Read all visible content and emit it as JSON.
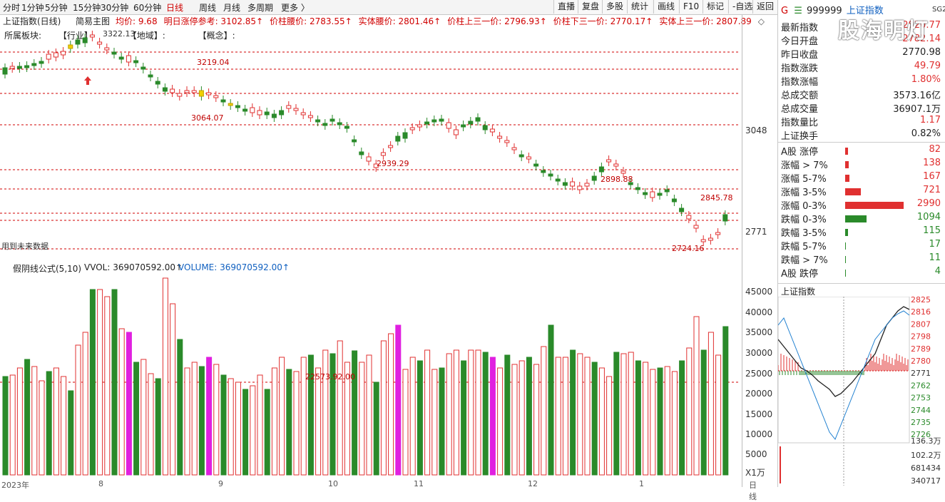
{
  "toolbar": {
    "periods": [
      "分时",
      "1分钟",
      "5分钟",
      "15分钟",
      "30分钟",
      "60分钟",
      "日线",
      "周线",
      "月线",
      "多周期",
      "更多"
    ],
    "active": "日线",
    "right_buttons": [
      "直播",
      "复盘",
      "多股",
      "统计",
      "画线",
      "F10",
      "标记",
      "-自选",
      "返回"
    ]
  },
  "header": {
    "index_name": "上证指数(日线)",
    "mode": "简易主图",
    "items": [
      {
        "label": "均价: 9.68"
      },
      {
        "label": "明日涨停参考: 3102.85↑"
      },
      {
        "label": "价柱腰价: 2783.55↑"
      },
      {
        "label": "实体腰价: 2801.46↑"
      },
      {
        "label": "价柱上三一价: 2796.93↑"
      },
      {
        "label": "价柱下三一价: 2770.17↑"
      },
      {
        "label": "实体上三一价: 2807.89"
      }
    ],
    "sector_line": "所属板块:",
    "sector_industry": "【行业】",
    "sector_region": "【地域】:",
    "sector_concept": "【概念】:"
  },
  "main_annotations": {
    "high_label": "3322.13",
    "p1": "3219.04",
    "p2": "3064.07",
    "p3": "2939.29",
    "p4": "2898.88",
    "p5": "2845.78",
    "low_label": "2724.16",
    "future_note": "用到未来数据"
  },
  "axis_main": [
    "3048",
    "2771"
  ],
  "vol_header": {
    "formula": "假阴线公式(5,10)",
    "vvol": "VVOL: 369070592.00↑",
    "volume": "VOLUME: 369070592.00↑",
    "mid_label": "22573.92.00"
  },
  "axis_vol": [
    "45000",
    "40000",
    "35000",
    "30000",
    "25000",
    "20000",
    "15000",
    "10000",
    "5000",
    "X1万"
  ],
  "x_axis": [
    "2023年",
    "8",
    "9",
    "10",
    "11",
    "12",
    "1",
    "日线"
  ],
  "right_panel": {
    "code_prefix": "G",
    "code": "999999",
    "name": "上证指数",
    "badge": "SG2",
    "stats": [
      {
        "k": "最新指数",
        "v": "2820.77",
        "c": "red"
      },
      {
        "k": "今日开盘",
        "v": "2782.14",
        "c": "red"
      },
      {
        "k": "昨日收盘",
        "v": "2770.98",
        "c": "black"
      },
      {
        "k": "指数涨跌",
        "v": "49.79",
        "c": "red"
      },
      {
        "k": "指数涨幅",
        "v": "1.80%",
        "c": "red"
      },
      {
        "k": "总成交额",
        "v": "3573.16亿",
        "c": "black"
      },
      {
        "k": "总成交量",
        "v": "36907.1万",
        "c": "black"
      },
      {
        "k": "指数量比",
        "v": "1.17",
        "c": "red"
      },
      {
        "k": "上证换手",
        "v": "0.82%",
        "c": "black"
      }
    ],
    "breadth": [
      {
        "k": "A股 涨停",
        "v": "82",
        "c": "red",
        "w": 4
      },
      {
        "k": "涨幅 > 7%",
        "v": "138",
        "c": "red",
        "w": 5
      },
      {
        "k": "涨幅 5-7%",
        "v": "167",
        "c": "red",
        "w": 6
      },
      {
        "k": "涨幅 3-5%",
        "v": "721",
        "c": "red",
        "w": 22
      },
      {
        "k": "涨幅 0-3%",
        "v": "2990",
        "c": "red",
        "w": 82
      },
      {
        "k": "跌幅 0-3%",
        "v": "1094",
        "c": "green",
        "w": 30
      },
      {
        "k": "跌幅 3-5%",
        "v": "115",
        "c": "green",
        "w": 4
      },
      {
        "k": "跌幅 5-7%",
        "v": "17",
        "c": "green",
        "w": 1
      },
      {
        "k": "跌幅 > 7%",
        "v": "11",
        "c": "green",
        "w": 1
      },
      {
        "k": "A股 跌停",
        "v": "4",
        "c": "green",
        "w": 1
      }
    ],
    "mini_title": "上证指数",
    "mini_axis": [
      "2825",
      "2816",
      "2807",
      "2798",
      "2789",
      "2780",
      "2771",
      "2762",
      "2753",
      "2744",
      "2735",
      "2726"
    ],
    "mini_vol_axis": [
      "136.3万",
      "102.2万",
      "681434",
      "340717"
    ]
  },
  "watermark": "股海明灯",
  "colors": {
    "up": "#e03030",
    "down": "#2a8a2a",
    "magenta": "#e020e0",
    "yellow": "#f0d000",
    "grid": "#d00000"
  }
}
